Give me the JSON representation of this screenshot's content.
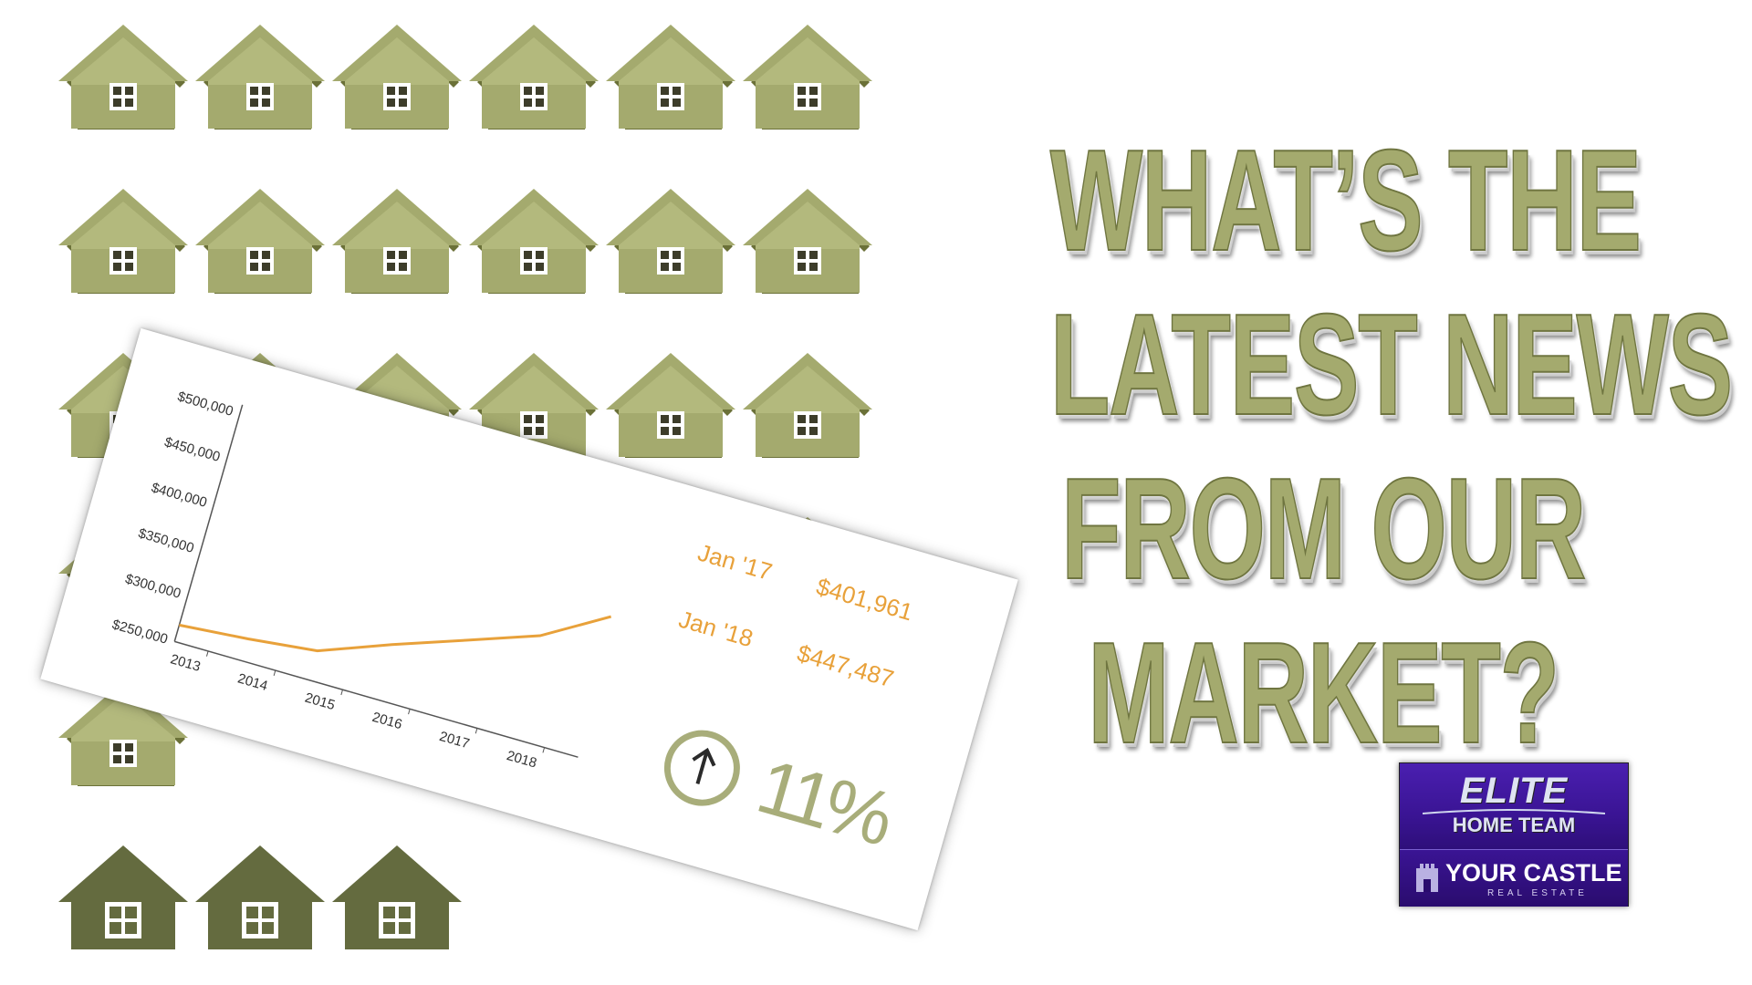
{
  "headline": {
    "lines": [
      "WHAT’S THE",
      "LATEST NEWS",
      "FROM OUR",
      "MARKET?"
    ]
  },
  "colors": {
    "house_light": "#a4aa6e",
    "house_dark": "#646b3f",
    "headline": "#a4aa6e",
    "chart_line": "#e8a13a",
    "percent": "#a8ad7a",
    "logo_purple": "#3a1494"
  },
  "decor": {
    "icon": "house-icon"
  },
  "chart_data": {
    "type": "line",
    "x": [
      2013,
      2014,
      2015,
      2016,
      2017,
      2018,
      2018.9
    ],
    "x_tick_labels": [
      "2013",
      "2014",
      "2015",
      "2016",
      "2017",
      "2018"
    ],
    "values": [
      268000,
      274000,
      282000,
      310000,
      336000,
      362000,
      402000
    ],
    "y_tick_labels": [
      "$500,000",
      "$450,000",
      "$400,000",
      "$350,000",
      "$300,000",
      "$250,000"
    ],
    "y_ticks": [
      500000,
      450000,
      400000,
      350000,
      300000,
      250000
    ],
    "ylim": [
      250000,
      500000
    ],
    "xlim": [
      2013,
      2019
    ],
    "title": "",
    "xlabel": "",
    "ylabel": "",
    "grid": false,
    "stats": [
      {
        "label": "Jan '17",
        "value": "$401,961"
      },
      {
        "label": "Jan '18",
        "value": "$447,487"
      }
    ],
    "change": {
      "icon": "up-arrow-circle-icon",
      "percent": "11%"
    }
  },
  "logo": {
    "top": "ELITE",
    "middle": "HOME TEAM",
    "bottom": "YOUR CASTLE",
    "tagline": "REAL ESTATE",
    "icon": "castle-icon"
  }
}
